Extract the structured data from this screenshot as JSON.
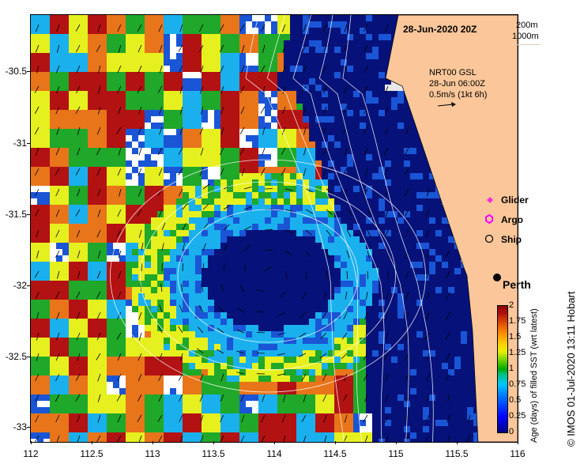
{
  "title": "28-Jun-2020 20Z",
  "isobaths": {
    "label_200": "200m",
    "label_1000": "1000m"
  },
  "current_info": {
    "source": "NRT00 GSL",
    "time": "28-Jun 06:00Z",
    "scale": "0.5m/s (1kt 6h)"
  },
  "legend": {
    "glider": "Glider",
    "argo": "Argo",
    "ship": "Ship"
  },
  "city": {
    "name": "Perth",
    "lon": 115.86,
    "lat": -31.95
  },
  "axes": {
    "x_ticks": [
      "112",
      "112.5",
      "113",
      "113.5",
      "114",
      "114.5",
      "115",
      "115.5",
      "116"
    ],
    "y_ticks": [
      "-30.5",
      "-31",
      "-31.5",
      "-32",
      "-32.5",
      "-33"
    ]
  },
  "colorbar": {
    "title": "Age (days) of filled SST (wrt latest)",
    "ticks": [
      "2",
      "1.75",
      "1.5",
      "1.25",
      "1",
      "0.75",
      "0.5",
      "0.25",
      "0"
    ]
  },
  "credit": "© IMOS 01-Jul-2020 13:11 Hobart",
  "colors": {
    "land": "#fbc79a",
    "red": "#b31212",
    "orange": "#e8751a",
    "yellow": "#e6f01e",
    "green": "#1fa82a",
    "cyan": "#1ab0ee",
    "blue": "#1a55d6",
    "navy": "#06127a"
  }
}
